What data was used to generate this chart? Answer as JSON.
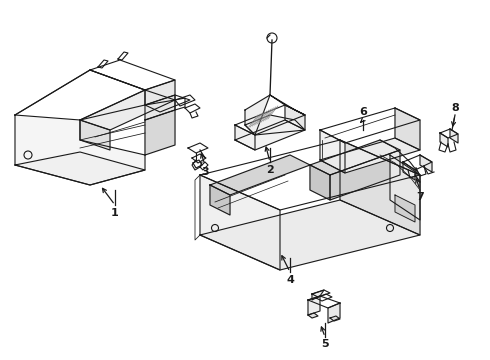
{
  "bg_color": "#ffffff",
  "line_color": "#1a1a1a",
  "lw": 0.8,
  "fig_w": 4.9,
  "fig_h": 3.6,
  "dpi": 100
}
